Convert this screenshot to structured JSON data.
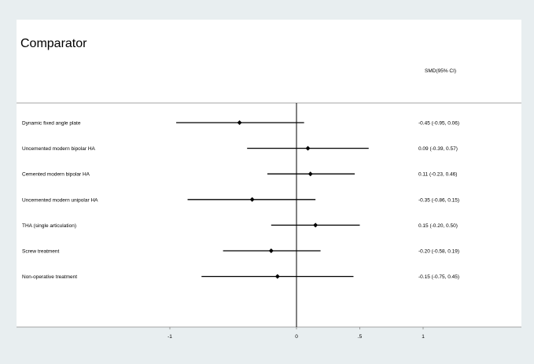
{
  "chart_data": {
    "type": "forest",
    "title": "Comparator",
    "effect_header": "SMD",
    "ci_header": "(95% CI)",
    "x_ticks": [
      {
        "value": -1,
        "label": "-1"
      },
      {
        "value": 0,
        "label": "0"
      },
      {
        "value": 0.5,
        "label": ".5"
      },
      {
        "value": 1,
        "label": "1"
      }
    ],
    "null_line": 0,
    "rows": [
      {
        "label": "Dynamic fixed angle plate",
        "estimate": -0.45,
        "lower": -0.95,
        "upper": 0.06,
        "ci_text": "-0.45 (-0.95, 0.06)"
      },
      {
        "label": "Uncemented modern bipolar HA",
        "estimate": 0.09,
        "lower": -0.39,
        "upper": 0.57,
        "ci_text": "0.09 (-0.39, 0.57)"
      },
      {
        "label": "Cemented modern bipolar HA",
        "estimate": 0.11,
        "lower": -0.23,
        "upper": 0.46,
        "ci_text": "0.11 (-0.23, 0.46)"
      },
      {
        "label": "Uncemented modern unipolar HA",
        "estimate": -0.35,
        "lower": -0.86,
        "upper": 0.15,
        "ci_text": "-0.35 (-0.86, 0.15)"
      },
      {
        "label": "THA (single articulation)",
        "estimate": 0.15,
        "lower": -0.2,
        "upper": 0.5,
        "ci_text": "0.15 (-0.20, 0.50)"
      },
      {
        "label": "Screw treatment",
        "estimate": -0.2,
        "lower": -0.58,
        "upper": 0.19,
        "ci_text": "-0.20 (-0.58, 0.19)"
      },
      {
        "label": "Non-operative treatment",
        "estimate": -0.15,
        "lower": -0.75,
        "upper": 0.45,
        "ci_text": "-0.15 (-0.75, 0.45)"
      }
    ]
  }
}
